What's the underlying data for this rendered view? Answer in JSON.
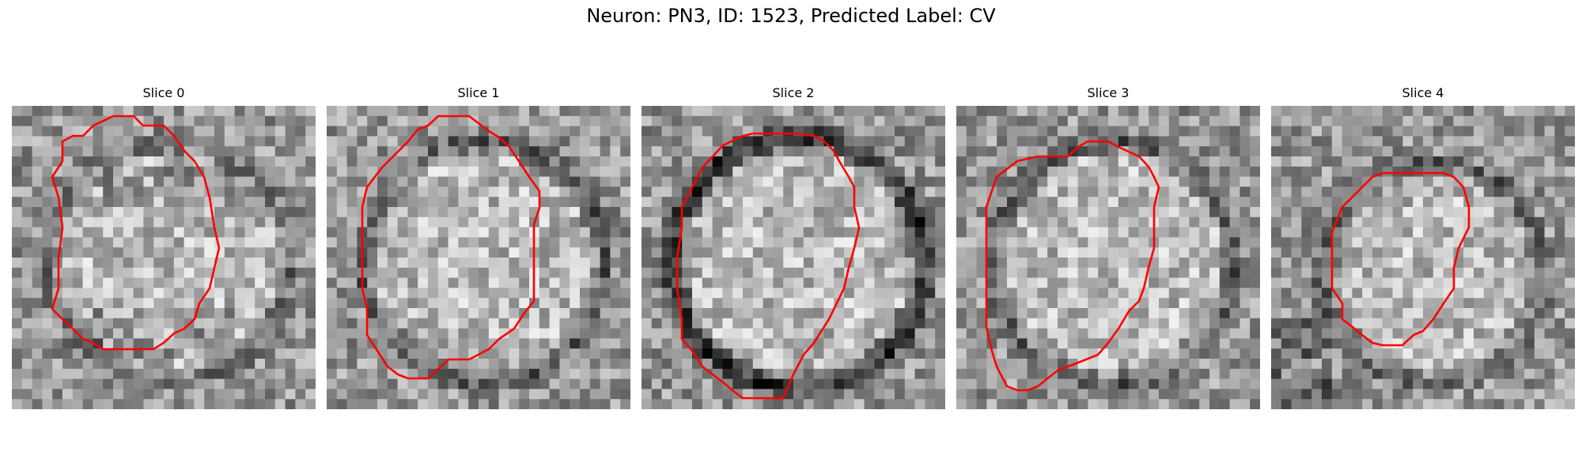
{
  "figure": {
    "title": "Neuron: PN3, ID: 1523, Predicted Label: CV"
  },
  "colors": {
    "contour": "#ff0000",
    "background": "#ffffff"
  },
  "panels": [
    {
      "title": "Slice 0",
      "style": "blob"
    },
    {
      "title": "Slice 1",
      "style": "ring_faint"
    },
    {
      "title": "Slice 2",
      "style": "ring_strong"
    },
    {
      "title": "Slice 3",
      "style": "ring_faint"
    },
    {
      "title": "Slice 4",
      "style": "ring_offset"
    }
  ]
}
